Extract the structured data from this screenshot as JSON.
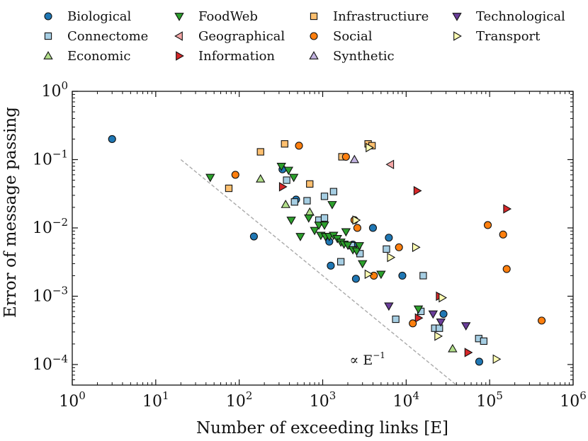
{
  "chart_data": {
    "type": "scatter",
    "title": "",
    "xlabel": "Number of exceeding links [E]",
    "ylabel": "Error of message passing",
    "xscale": "log",
    "yscale": "log",
    "xlim": [
      1,
      1000000
    ],
    "ylim": [
      5e-05,
      1
    ],
    "xticks": [
      {
        "value": 1,
        "base": "10",
        "exp": "0"
      },
      {
        "value": 10,
        "base": "10",
        "exp": "1"
      },
      {
        "value": 100,
        "base": "10",
        "exp": "2"
      },
      {
        "value": 1000,
        "base": "10",
        "exp": "3"
      },
      {
        "value": 10000,
        "base": "10",
        "exp": "4"
      },
      {
        "value": 100000,
        "base": "10",
        "exp": "5"
      },
      {
        "value": 1000000,
        "base": "10",
        "exp": "6"
      }
    ],
    "yticks": [
      {
        "value": 1,
        "base": "10",
        "exp": "0"
      },
      {
        "value": 0.1,
        "base": "10",
        "exp": "−1"
      },
      {
        "value": 0.01,
        "base": "10",
        "exp": "−2"
      },
      {
        "value": 0.001,
        "base": "10",
        "exp": "−3"
      },
      {
        "value": 0.0001,
        "base": "10",
        "exp": "−4"
      }
    ],
    "guide_line": {
      "points": [
        [
          20,
          0.1
        ],
        [
          40000,
          5e-05
        ]
      ],
      "label_text": "∝ E",
      "label_exp": "−1",
      "label_at": [
        2100,
        0.0001
      ],
      "color": "#aaaaaa"
    },
    "legend_position": "top",
    "series": [
      {
        "name": "Biological",
        "marker": "circle",
        "color": "#1f77b4",
        "points": [
          [
            3,
            0.2
          ],
          [
            150,
            0.0075
          ],
          [
            330,
            0.072
          ],
          [
            480,
            0.026
          ],
          [
            1200,
            0.0063
          ],
          [
            1250,
            0.0028
          ],
          [
            2300,
            0.0057
          ],
          [
            2500,
            0.0018
          ],
          [
            4000,
            0.01
          ],
          [
            6200,
            0.0072
          ],
          [
            9000,
            0.002
          ],
          [
            28000,
            0.00055
          ],
          [
            75000,
            0.00011
          ]
        ]
      },
      {
        "name": "Connectome",
        "marker": "square",
        "color": "#a6cee3",
        "points": [
          [
            370,
            0.05
          ],
          [
            460,
            0.024
          ],
          [
            650,
            0.025
          ],
          [
            900,
            0.013
          ],
          [
            1050,
            0.029
          ],
          [
            1050,
            0.014
          ],
          [
            1350,
            0.034
          ],
          [
            1650,
            0.0032
          ],
          [
            2200,
            0.0055
          ],
          [
            2800,
            0.0042
          ],
          [
            5800,
            0.0049
          ],
          [
            7500,
            0.00046
          ],
          [
            16000,
            0.002
          ],
          [
            22000,
            0.00034
          ],
          [
            25000,
            0.00034
          ],
          [
            74000,
            0.00024
          ],
          [
            85000,
            0.00022
          ],
          [
            15000,
            0.0006
          ]
        ]
      },
      {
        "name": "Economic",
        "marker": "triangle-up",
        "color": "#b2df8a",
        "points": [
          [
            180,
            0.052
          ],
          [
            360,
            0.022
          ],
          [
            700,
            0.017
          ],
          [
            36000,
            0.00017
          ]
        ]
      },
      {
        "name": "FoodWeb",
        "marker": "triangle-down",
        "color": "#2ca02c",
        "points": [
          [
            45,
            0.055
          ],
          [
            320,
            0.08
          ],
          [
            390,
            0.07
          ],
          [
            450,
            0.055
          ],
          [
            420,
            0.013
          ],
          [
            540,
            0.0075
          ],
          [
            680,
            0.014
          ],
          [
            800,
            0.0092
          ],
          [
            900,
            0.011
          ],
          [
            950,
            0.0078
          ],
          [
            1050,
            0.011
          ],
          [
            1080,
            0.0075
          ],
          [
            1200,
            0.0075
          ],
          [
            1300,
            0.022
          ],
          [
            1350,
            0.0078
          ],
          [
            1500,
            0.007
          ],
          [
            1650,
            0.0062
          ],
          [
            1800,
            0.0058
          ],
          [
            1900,
            0.0088
          ],
          [
            2000,
            0.0056
          ],
          [
            2300,
            0.0048
          ],
          [
            2550,
            0.0046
          ],
          [
            2750,
            0.0055
          ],
          [
            3000,
            0.003
          ],
          [
            5000,
            0.0021
          ],
          [
            14000,
            0.00065
          ]
        ]
      },
      {
        "name": "Geographical",
        "marker": "triangle-left",
        "color": "#f4a6a6",
        "points": [
          [
            6500,
            0.085
          ]
        ]
      },
      {
        "name": "Information",
        "marker": "triangle-right",
        "color": "#d62728",
        "points": [
          [
            330,
            0.04
          ],
          [
            13500,
            0.035
          ],
          [
            14000,
            0.00048
          ],
          [
            25000,
            0.001
          ],
          [
            55000,
            0.00015
          ],
          [
            160000,
            0.019
          ]
        ]
      },
      {
        "name": "Infrastructiure",
        "marker": "square",
        "color": "#fdbf6f",
        "points": [
          [
            75,
            0.038
          ],
          [
            180,
            0.13
          ],
          [
            350,
            0.17
          ],
          [
            700,
            0.044
          ],
          [
            1700,
            0.11
          ],
          [
            3500,
            0.17
          ],
          [
            3900,
            0.16
          ]
        ]
      },
      {
        "name": "Social",
        "marker": "circle",
        "color": "#ff7f0e",
        "points": [
          [
            90,
            0.06
          ],
          [
            520,
            0.16
          ],
          [
            1900,
            0.11
          ],
          [
            2400,
            0.013
          ],
          [
            2600,
            0.01
          ],
          [
            4100,
            0.002
          ],
          [
            8200,
            0.0052
          ],
          [
            12000,
            0.0004
          ],
          [
            95000,
            0.011
          ],
          [
            145000,
            0.008
          ],
          [
            160000,
            0.0025
          ],
          [
            420000,
            0.00044
          ]
        ]
      },
      {
        "name": "Synthetic",
        "marker": "triangle-up",
        "color": "#c2b3e0",
        "points": [
          [
            2400,
            0.1
          ]
        ]
      },
      {
        "name": "Technological",
        "marker": "triangle-down",
        "color": "#6a3d9a",
        "points": [
          [
            6200,
            0.00072
          ],
          [
            21000,
            0.00055
          ],
          [
            26000,
            0.00042
          ],
          [
            52000,
            0.00037
          ]
        ]
      },
      {
        "name": "Transport",
        "marker": "triangle-right",
        "color": "#ffffb3",
        "points": [
          [
            2500,
            0.013
          ],
          [
            3500,
            0.0021
          ],
          [
            3600,
            0.15
          ],
          [
            6500,
            0.0037
          ],
          [
            13000,
            0.0052
          ],
          [
            24000,
            0.00026
          ],
          [
            27000,
            0.00095
          ],
          [
            120000,
            0.00012
          ]
        ]
      }
    ]
  }
}
